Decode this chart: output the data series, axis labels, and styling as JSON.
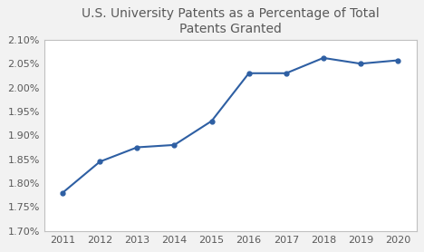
{
  "title": "U.S. University Patents as a Percentage of Total\nPatents Granted",
  "years": [
    2011,
    2012,
    2013,
    2014,
    2015,
    2016,
    2017,
    2018,
    2019,
    2020
  ],
  "values": [
    0.0178,
    0.01845,
    0.01875,
    0.0188,
    0.0193,
    0.0203,
    0.0203,
    0.02062,
    0.0205,
    0.02057
  ],
  "line_color": "#2E5FA3",
  "marker": "o",
  "marker_size": 3.5,
  "ylim": [
    0.017,
    0.021
  ],
  "yticks": [
    0.017,
    0.0175,
    0.018,
    0.0185,
    0.019,
    0.0195,
    0.02,
    0.0205,
    0.021
  ],
  "xlim": [
    2010.5,
    2020.5
  ],
  "background_color": "#F2F2F2",
  "plot_background": "#FFFFFF",
  "grid_color": "#FFFFFF",
  "title_fontsize": 10,
  "tick_fontsize": 8,
  "title_color": "#595959"
}
